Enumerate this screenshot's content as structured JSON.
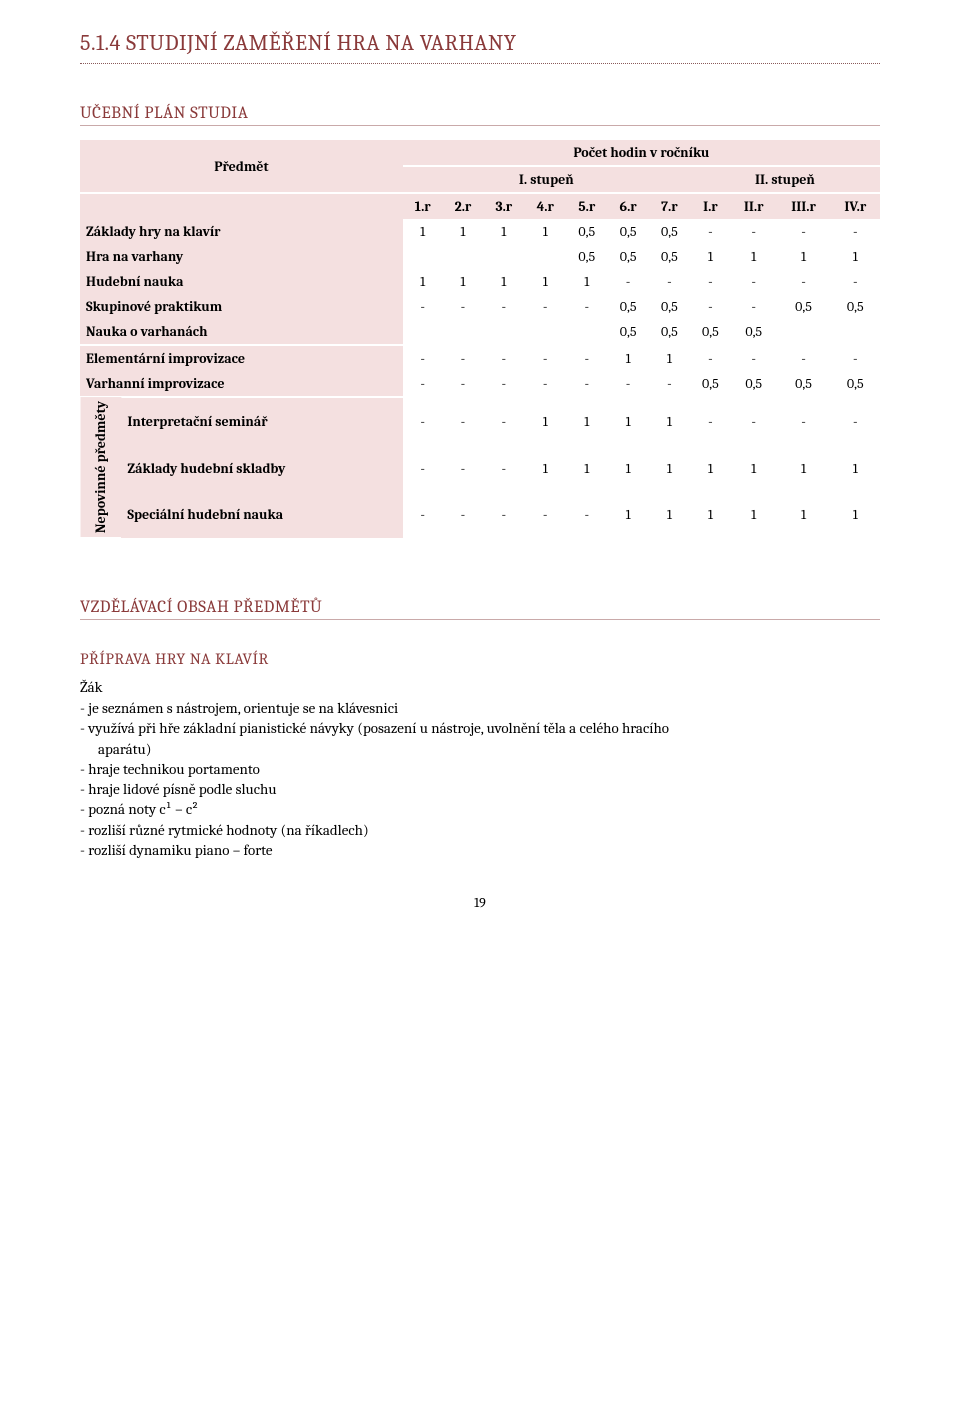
{
  "section_number": "5.1.4",
  "section_title": "STUDIJNÍ ZAMĚŘENÍ HRA NA VARHANY",
  "study_plan_heading": "UČEBNÍ PLÁN STUDIA",
  "table": {
    "predmet_label": "Předmět",
    "count_header": "Počet hodin v ročníku",
    "stupen1": "I. stupeň",
    "stupen2": "II. stupeň",
    "cols": [
      "1.r",
      "2.r",
      "3.r",
      "4.r",
      "5.r",
      "6.r",
      "7.r",
      "I.r",
      "II.r",
      "III.r",
      "IV.r"
    ],
    "rows": [
      {
        "label": "Základy hry na klavír",
        "vals": [
          "1",
          "1",
          "1",
          "1",
          "0,5",
          "0,5",
          "0,5",
          "-",
          "-",
          "-",
          "-"
        ],
        "band": true
      },
      {
        "label": "Hra na varhany",
        "vals": [
          "",
          "",
          "",
          "",
          "0,5",
          "0,5",
          "0,5",
          "1",
          "1",
          "1",
          "1"
        ],
        "band": true
      },
      {
        "label": "Hudební nauka",
        "vals": [
          "1",
          "1",
          "1",
          "1",
          "1",
          "-",
          "-",
          "-",
          "-",
          "-",
          "-"
        ],
        "band": true
      },
      {
        "label": "Skupinové praktikum",
        "vals": [
          "-",
          "-",
          "-",
          "-",
          "-",
          "0,5",
          "0,5",
          "-",
          "-",
          "0,5",
          "0,5"
        ],
        "band": true
      },
      {
        "label": "Nauka o varhanách",
        "vals": [
          "",
          "",
          "",
          "",
          "",
          "0,5",
          "0,5",
          "0,5",
          "0,5",
          "",
          ""
        ],
        "band": true
      },
      {
        "label": "Elementární improvizace",
        "vals": [
          "-",
          "-",
          "-",
          "-",
          "-",
          "1",
          "1",
          "-",
          "-",
          "-",
          "-"
        ],
        "band": true,
        "gap": true
      },
      {
        "label": "Varhanní improvizace",
        "vals": [
          "-",
          "-",
          "-",
          "-",
          "-",
          "-",
          "-",
          "0,5",
          "0,5",
          "0,5",
          "0,5"
        ],
        "band": true
      }
    ],
    "side_group_label": "Nepovinné předměty",
    "side_rows": [
      {
        "label": "Interpretační seminář",
        "vals": [
          "-",
          "-",
          "-",
          "1",
          "1",
          "1",
          "1",
          "-",
          "-",
          "-",
          "-"
        ]
      },
      {
        "label": "Základy hudební skladby",
        "vals": [
          "-",
          "-",
          "-",
          "1",
          "1",
          "1",
          "1",
          "1",
          "1",
          "1",
          "1"
        ]
      },
      {
        "label": "Speciální hudební nauka",
        "vals": [
          "-",
          "-",
          "-",
          "-",
          "-",
          "1",
          "1",
          "1",
          "1",
          "1",
          "1"
        ]
      }
    ],
    "colors": {
      "header_bg": "#f4e0e0",
      "border": "#ffffff",
      "text": "#000000",
      "accent": "#8a3a3a"
    },
    "col_count": 11
  },
  "content_heading": "VZDĚLÁVACÍ OBSAH PŘEDMĚTŮ",
  "prep_heading": "PŘÍPRAVA HRY NA KLAVÍR",
  "zak_label": "Žák",
  "bullets": [
    "je seznámen s nástrojem, orientuje se na klávesnici",
    "využívá při hře základní pianistické návyky (posazení u nástroje, uvolnění těla a celého hracího",
    "INDENT:aparátu)",
    "hraje technikou portamento",
    "hraje lidové písně podle sluchu",
    "pozná noty c¹ – c²",
    "rozliší různé rytmické hodnoty (na říkadlech)",
    "rozliší dynamiku piano – forte"
  ],
  "page_number": "19"
}
